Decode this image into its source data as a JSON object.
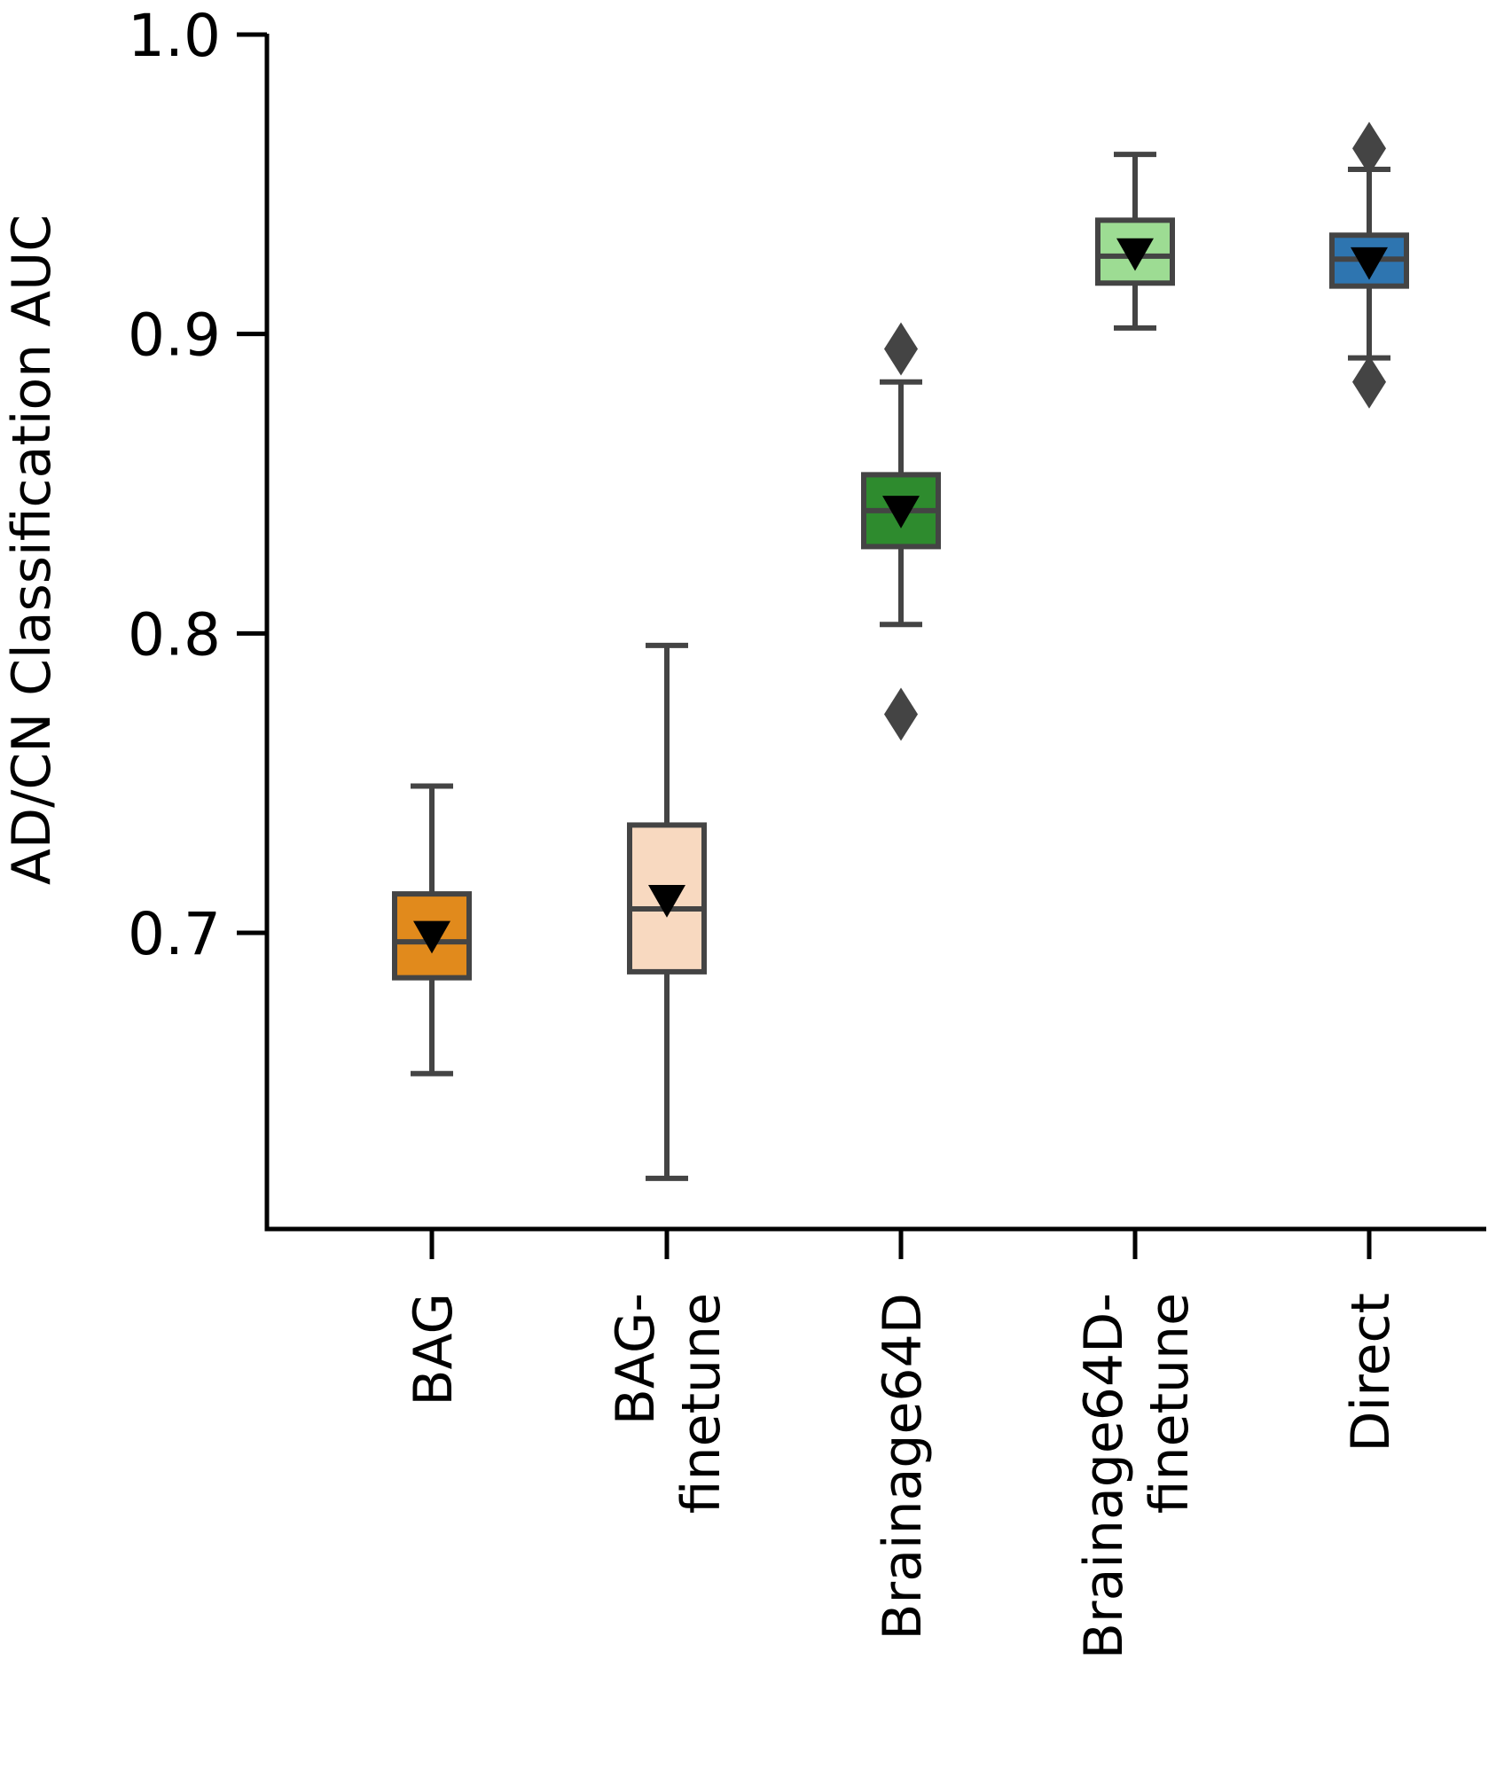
{
  "chart_data": {
    "type": "box",
    "title": "",
    "xlabel": "",
    "ylabel": "AD/CN Classification AUC",
    "ylim": [
      0.6,
      1.0
    ],
    "yticks": [
      0.7,
      0.8,
      0.9,
      1.0
    ],
    "ytick_labels": [
      "0.7",
      "0.8",
      "0.9",
      "1.0"
    ],
    "grid": false,
    "legend": "none",
    "mean_marker": "down-triangle",
    "outlier_marker": "diamond",
    "series": [
      {
        "name": "BAG",
        "label_lines": [
          "BAG"
        ],
        "color": "#e18a1c",
        "whisker_low": 0.653,
        "q1": 0.685,
        "median": 0.697,
        "q3": 0.713,
        "whisker_high": 0.749,
        "mean": 0.699,
        "outliers": []
      },
      {
        "name": "BAG-finetune",
        "label_lines": [
          "BAG-",
          "finetune"
        ],
        "color": "#f8d9c0",
        "whisker_low": 0.618,
        "q1": 0.687,
        "median": 0.708,
        "q3": 0.736,
        "whisker_high": 0.796,
        "mean": 0.711,
        "outliers": []
      },
      {
        "name": "Brainage64D",
        "label_lines": [
          "Brainage64D"
        ],
        "color": "#2e8b2e",
        "whisker_low": 0.803,
        "q1": 0.829,
        "median": 0.841,
        "q3": 0.853,
        "whisker_high": 0.884,
        "mean": 0.841,
        "outliers": [
          0.773,
          0.895
        ]
      },
      {
        "name": "Brainage64D-finetune",
        "label_lines": [
          "Brainage64D-",
          "finetune"
        ],
        "color": "#9ddc93",
        "whisker_low": 0.902,
        "q1": 0.917,
        "median": 0.926,
        "q3": 0.938,
        "whisker_high": 0.96,
        "mean": 0.927,
        "outliers": []
      },
      {
        "name": "Direct",
        "label_lines": [
          "Direct"
        ],
        "color": "#2e75b0",
        "whisker_low": 0.892,
        "q1": 0.916,
        "median": 0.925,
        "q3": 0.933,
        "whisker_high": 0.955,
        "mean": 0.924,
        "outliers": [
          0.884,
          0.962
        ]
      }
    ]
  }
}
